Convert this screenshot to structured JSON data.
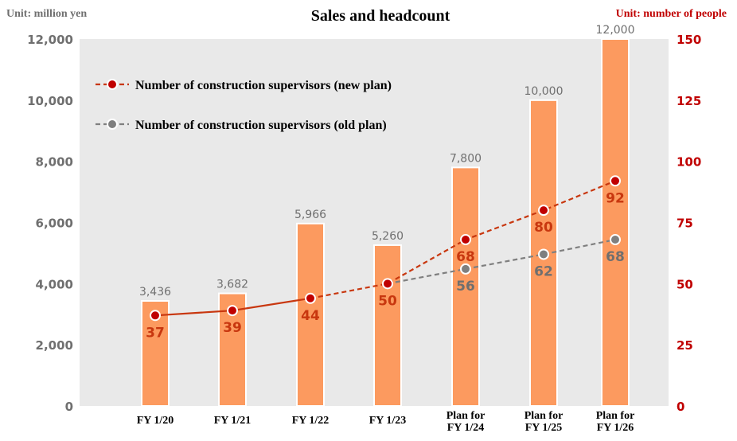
{
  "chart_data": {
    "type": "bar+line",
    "title": "Sales and headcount",
    "left_unit": "Unit: million yen",
    "right_unit": "Unit: number of people",
    "categories": [
      [
        "FY 1/20"
      ],
      [
        "FY 1/21"
      ],
      [
        "FY 1/22"
      ],
      [
        "FY 1/23"
      ],
      [
        "Plan for",
        "FY 1/24"
      ],
      [
        "Plan for",
        "FY 1/25"
      ],
      [
        "Plan for",
        "FY 1/26"
      ]
    ],
    "left_axis": {
      "min": 0,
      "max": 12000,
      "ticks": [
        "0",
        "2,000",
        "4,000",
        "6,000",
        "8,000",
        "10,000",
        "12,000"
      ]
    },
    "right_axis": {
      "min": 0,
      "max": 150,
      "ticks": [
        "0",
        "25",
        "50",
        "75",
        "100",
        "125",
        "150"
      ]
    },
    "bars": {
      "values": [
        3436,
        3682,
        5966,
        5260,
        7800,
        10000,
        12000
      ],
      "labels": [
        "3,436",
        "3,682",
        "5,966",
        "5,260",
        "7,800",
        "10,000",
        "12,000"
      ],
      "color": "#fc9a5f"
    },
    "series": [
      {
        "name": "Number of construction supervisors (new plan)",
        "values": [
          37,
          39,
          44,
          50,
          68,
          80,
          92
        ],
        "labels": [
          "37",
          "39",
          "44",
          "50",
          "68",
          "80",
          "92"
        ],
        "color": "#c8370f",
        "marker_fill": "#c00000"
      },
      {
        "name": "Number of construction supervisors (old plan)",
        "values": [
          null,
          null,
          null,
          50,
          56,
          62,
          68
        ],
        "labels": [
          "",
          "",
          "",
          "",
          "56",
          "62",
          "68"
        ],
        "color": "#7f7f7f",
        "marker_fill": "#7f7f7f"
      }
    ],
    "colors": {
      "plot_bg": "#e9e9e9",
      "left_axis_text": "#6f6f6f",
      "right_axis_text": "#c00000",
      "bar_label": "#6f6f6f",
      "new_label": "#c8370f",
      "old_label": "#6f6f6f"
    }
  }
}
